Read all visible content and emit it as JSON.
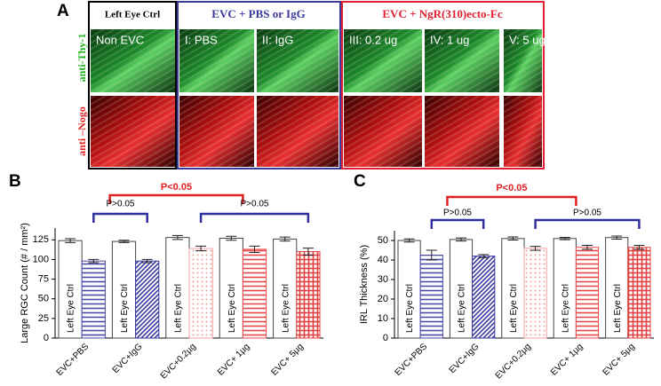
{
  "panel_a": {
    "label": "A",
    "groups": [
      "Left Eye Ctrl",
      "EVC + PBS or IgG",
      "EVC + NgR(310)ecto-Fc"
    ],
    "columns": [
      "Non EVC",
      "I: PBS",
      "II: IgG",
      "III: 0.2 ug",
      "IV: 1 ug",
      "V: 5 ug"
    ],
    "rows": [
      "anti-Thy-1",
      "anti –Nogo"
    ]
  },
  "chart_data": [
    {
      "type": "bar",
      "label": "B",
      "y_label": "Large RGC Count (# / mm²)",
      "categories": [
        "EVC+PBS",
        "EVC+IgG",
        "EVC+0.2µg",
        "EVC+ 1µg",
        "EVC+ 5µg"
      ],
      "series": [
        {
          "name": "Left Eye Ctrl",
          "color": "#ffffff",
          "values": [
            124,
            123,
            128,
            127,
            126
          ],
          "errors": [
            2.5,
            1.5,
            2.5,
            2.5,
            2.5
          ]
        },
        {
          "colors": [
            "#4a4aa8",
            "#3a3aa0",
            "#f0a0a0",
            "#e84848",
            "#e04040"
          ],
          "patterns": [
            "horizontal",
            "diagonal",
            "dots",
            "horizontal",
            "cross"
          ],
          "values": [
            98,
            98,
            114,
            113,
            110
          ],
          "errors": [
            2,
            2,
            3,
            4,
            4.5
          ]
        }
      ],
      "ylim": [
        0,
        140
      ],
      "yticks": [
        0,
        25,
        50,
        75,
        100,
        125
      ],
      "annotations": [
        {
          "text": "P<0.05",
          "color": "#e02020"
        },
        {
          "text": "P>0.05",
          "color": "#30309a"
        },
        {
          "text": "P>0.05",
          "color": "#30309a"
        }
      ]
    },
    {
      "type": "bar",
      "label": "C",
      "y_label": "IRL Thickness (%)",
      "categories": [
        "EVC+PBS",
        "EVC+IgG",
        "EVC+0.2µg",
        "EVC+ 1µg",
        "EVC+ 5µg"
      ],
      "series": [
        {
          "name": "Left Eye Ctrl",
          "color": "#ffffff",
          "values": [
            50,
            50.5,
            51,
            51,
            51.5
          ],
          "errors": [
            0.8,
            0.8,
            0.8,
            0.6,
            0.8
          ]
        },
        {
          "colors": [
            "#4a4aa8",
            "#3a3aa0",
            "#f0a0a0",
            "#e84848",
            "#e04040"
          ],
          "patterns": [
            "horizontal",
            "diagonal",
            "dots",
            "horizontal",
            "cross"
          ],
          "values": [
            42.5,
            42,
            46,
            46.5,
            46.5
          ],
          "errors": [
            2.5,
            0.8,
            1,
            1,
            1
          ]
        }
      ],
      "ylim": [
        0,
        55
      ],
      "yticks": [
        0,
        10,
        20,
        30,
        40,
        50
      ],
      "annotations": [
        {
          "text": "P<0.05",
          "color": "#e02020"
        },
        {
          "text": "P>0.05",
          "color": "#30309a"
        },
        {
          "text": "P>0.05",
          "color": "#30309a"
        }
      ]
    }
  ]
}
